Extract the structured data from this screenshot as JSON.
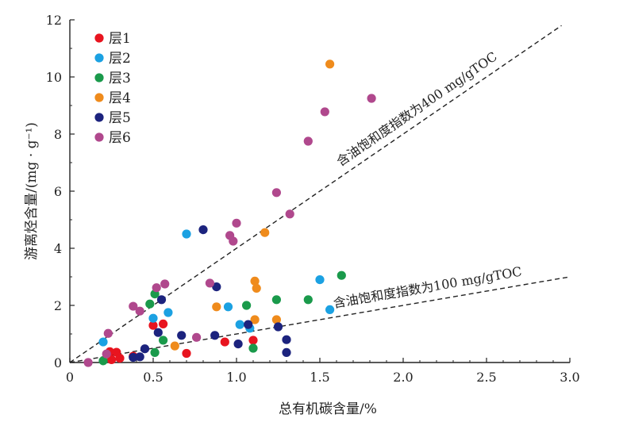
{
  "chart_data": {
    "type": "scatter",
    "xlabel": "总有机碳含量/%",
    "ylabel": "游离烃含量/(mg · g⁻¹)",
    "xlim": [
      0,
      3.0
    ],
    "ylim": [
      0,
      12
    ],
    "x_ticks": [
      "0",
      "0.5",
      "1.0",
      "1.5",
      "2.0",
      "2.5",
      "3.0"
    ],
    "y_ticks": [
      "0",
      "2",
      "4",
      "6",
      "8",
      "10",
      "12"
    ],
    "legend_position": "top-left",
    "grid": false,
    "series": [
      {
        "name": "层1",
        "color": "#e8141f",
        "points": [
          [
            0.24,
            0.38
          ],
          [
            0.28,
            0.36
          ],
          [
            0.3,
            0.15
          ],
          [
            0.25,
            0.1
          ],
          [
            0.38,
            0.22
          ],
          [
            0.5,
            1.3
          ],
          [
            0.56,
            1.35
          ],
          [
            0.7,
            0.32
          ],
          [
            0.93,
            0.72
          ],
          [
            1.1,
            0.78
          ]
        ]
      },
      {
        "name": "层2",
        "color": "#1ba1e2",
        "points": [
          [
            0.2,
            0.72
          ],
          [
            0.5,
            1.55
          ],
          [
            0.59,
            1.75
          ],
          [
            0.7,
            4.5
          ],
          [
            0.95,
            1.95
          ],
          [
            1.02,
            1.33
          ],
          [
            1.08,
            1.2
          ],
          [
            1.5,
            2.9
          ],
          [
            1.56,
            1.85
          ]
        ]
      },
      {
        "name": "层3",
        "color": "#1a9a4b",
        "points": [
          [
            0.2,
            0.06
          ],
          [
            0.48,
            2.05
          ],
          [
            0.51,
            2.4
          ],
          [
            0.51,
            0.35
          ],
          [
            0.56,
            0.78
          ],
          [
            1.06,
            2.0
          ],
          [
            1.1,
            0.5
          ],
          [
            1.24,
            2.2
          ],
          [
            1.43,
            2.2
          ],
          [
            1.63,
            3.05
          ]
        ]
      },
      {
        "name": "层4",
        "color": "#ef8b1c",
        "points": [
          [
            0.63,
            0.58
          ],
          [
            0.88,
            1.95
          ],
          [
            1.11,
            2.85
          ],
          [
            1.12,
            2.6
          ],
          [
            1.11,
            1.5
          ],
          [
            1.17,
            4.55
          ],
          [
            1.24,
            1.5
          ],
          [
            1.56,
            10.45
          ]
        ]
      },
      {
        "name": "层5",
        "color": "#1c237e",
        "points": [
          [
            0.38,
            0.18
          ],
          [
            0.42,
            0.2
          ],
          [
            0.45,
            0.48
          ],
          [
            0.53,
            1.05
          ],
          [
            0.55,
            2.2
          ],
          [
            0.67,
            0.95
          ],
          [
            0.8,
            4.65
          ],
          [
            0.87,
            0.95
          ],
          [
            0.88,
            2.65
          ],
          [
            1.01,
            0.65
          ],
          [
            1.07,
            1.33
          ],
          [
            1.25,
            1.25
          ],
          [
            1.3,
            0.8
          ],
          [
            1.3,
            0.35
          ]
        ]
      },
      {
        "name": "层6",
        "color": "#b0488d",
        "points": [
          [
            0.11,
            0.0
          ],
          [
            0.22,
            0.3
          ],
          [
            0.23,
            1.02
          ],
          [
            0.38,
            1.97
          ],
          [
            0.42,
            1.8
          ],
          [
            0.52,
            2.62
          ],
          [
            0.57,
            2.75
          ],
          [
            0.76,
            0.88
          ],
          [
            0.84,
            2.78
          ],
          [
            0.96,
            4.45
          ],
          [
            0.98,
            4.25
          ],
          [
            1.0,
            4.88
          ],
          [
            1.24,
            5.95
          ],
          [
            1.32,
            5.2
          ],
          [
            1.43,
            7.75
          ],
          [
            1.53,
            8.78
          ],
          [
            1.81,
            9.25
          ]
        ]
      }
    ],
    "reference_lines": [
      {
        "label": "含油饱和度指数为400 mg/gTOC",
        "slope": 4,
        "x_range": [
          0,
          2.95
        ]
      },
      {
        "label": "含油饱和度指数为100 mg/gTOC",
        "slope": 1,
        "x_range": [
          0,
          3.0
        ]
      }
    ]
  }
}
